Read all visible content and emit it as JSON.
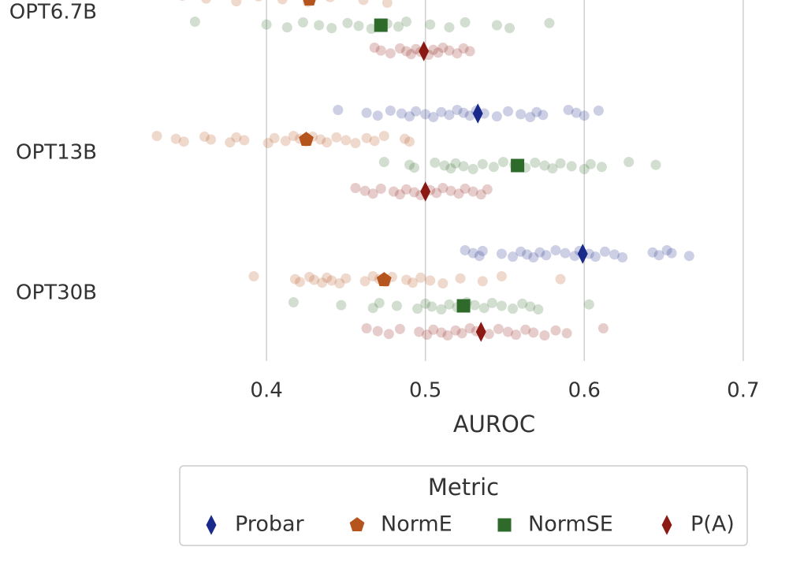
{
  "chart_data": {
    "type": "strip",
    "xlabel": "AUROC",
    "categories": [
      "OPT6.7B",
      "OPT13B",
      "OPT30B"
    ],
    "xlim": [
      0.33,
      0.71
    ],
    "xticks": [
      0.4,
      0.5,
      0.6,
      0.7
    ],
    "grid": true,
    "legend": {
      "title": "Metric",
      "position": "lower center"
    },
    "series": [
      {
        "name": "Probar",
        "color": "#1a2a8a",
        "marker": "diamond",
        "values": [
          null,
          0.533,
          0.599
        ],
        "points": [
          [],
          [
            0.445,
            0.463,
            0.47,
            0.478,
            0.485,
            0.49,
            0.494,
            0.5,
            0.505,
            0.51,
            0.515,
            0.52,
            0.524,
            0.528,
            0.532,
            0.537,
            0.545,
            0.552,
            0.56,
            0.566,
            0.57,
            0.574,
            0.59,
            0.595,
            0.6,
            0.609
          ],
          [
            0.525,
            0.53,
            0.534,
            0.536,
            0.548,
            0.555,
            0.56,
            0.564,
            0.568,
            0.572,
            0.576,
            0.582,
            0.588,
            0.594,
            0.597,
            0.603,
            0.607,
            0.613,
            0.619,
            0.624,
            0.643,
            0.647,
            0.652,
            0.655,
            0.666
          ]
        ]
      },
      {
        "name": "NormE",
        "color": "#b5541c",
        "marker": "pentagon",
        "values": [
          0.427,
          0.425,
          0.474
        ],
        "points": [
          [
            0.347,
            0.362,
            0.381,
            0.395,
            0.41,
            0.426,
            0.44,
            0.461,
            0.476
          ],
          [
            0.331,
            0.343,
            0.348,
            0.361,
            0.365,
            0.377,
            0.381,
            0.386,
            0.401,
            0.405,
            0.412,
            0.417,
            0.421,
            0.425,
            0.429,
            0.434,
            0.438,
            0.444,
            0.45,
            0.456,
            0.463,
            0.468,
            0.474,
            0.487,
            0.49
          ],
          [
            0.392,
            0.418,
            0.421,
            0.427,
            0.43,
            0.435,
            0.438,
            0.441,
            0.446,
            0.45,
            0.462,
            0.467,
            0.471,
            0.475,
            0.479,
            0.488,
            0.492,
            0.497,
            0.503,
            0.511,
            0.522,
            0.536,
            0.548,
            0.585
          ]
        ]
      },
      {
        "name": "NormSE",
        "color": "#2e6b2a",
        "marker": "square",
        "values": [
          0.472,
          0.558,
          0.524
        ],
        "points": [
          [
            0.355,
            0.4,
            0.413,
            0.423,
            0.433,
            0.441,
            0.451,
            0.458,
            0.466,
            0.476,
            0.483,
            0.488,
            0.503,
            0.515,
            0.525,
            0.545,
            0.553,
            0.578
          ],
          [
            0.474,
            0.49,
            0.493,
            0.506,
            0.512,
            0.516,
            0.519,
            0.524,
            0.53,
            0.536,
            0.543,
            0.549,
            0.556,
            0.563,
            0.569,
            0.575,
            0.58,
            0.585,
            0.592,
            0.6,
            0.604,
            0.611,
            0.628,
            0.645
          ],
          [
            0.417,
            0.447,
            0.467,
            0.471,
            0.482,
            0.495,
            0.5,
            0.504,
            0.51,
            0.515,
            0.52,
            0.526,
            0.531,
            0.537,
            0.542,
            0.548,
            0.555,
            0.561,
            0.566,
            0.571,
            0.603
          ]
        ]
      },
      {
        "name": "P(A)",
        "color": "#8b1a14",
        "marker": "diamond",
        "values": [
          0.499,
          0.5,
          0.535
        ],
        "points": [
          [
            0.468,
            0.472,
            0.478,
            0.484,
            0.488,
            0.491,
            0.494,
            0.497,
            0.502,
            0.505,
            0.508,
            0.511,
            0.515,
            0.52,
            0.524,
            0.528
          ],
          [
            0.456,
            0.462,
            0.467,
            0.472,
            0.48,
            0.484,
            0.488,
            0.493,
            0.497,
            0.503,
            0.507,
            0.511,
            0.516,
            0.521,
            0.525,
            0.53,
            0.535,
            0.539
          ],
          [
            0.463,
            0.47,
            0.477,
            0.484,
            0.496,
            0.501,
            0.505,
            0.51,
            0.514,
            0.519,
            0.523,
            0.528,
            0.532,
            0.54,
            0.546,
            0.552,
            0.557,
            0.563,
            0.568,
            0.575,
            0.582,
            0.589,
            0.612
          ]
        ]
      }
    ]
  }
}
